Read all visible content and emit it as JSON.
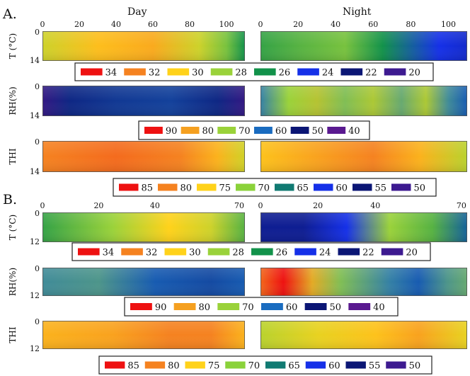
{
  "figure": {
    "panel_labels": [
      "A.",
      "B."
    ],
    "column_titles": [
      "Day",
      "Night"
    ],
    "legend_scales": {
      "temperature": [
        {
          "value": "34",
          "color": "#ee1111"
        },
        {
          "value": "32",
          "color": "#f58220"
        },
        {
          "value": "30",
          "color": "#ffd21a"
        },
        {
          "value": "28",
          "color": "#9ad23a"
        },
        {
          "value": "26",
          "color": "#12924a"
        },
        {
          "value": "24",
          "color": "#1530e8"
        },
        {
          "value": "22",
          "color": "#0b1675"
        },
        {
          "value": "20",
          "color": "#3d1a90"
        }
      ],
      "rh": [
        {
          "value": "90",
          "color": "#ee1111"
        },
        {
          "value": "80",
          "color": "#f5a020"
        },
        {
          "value": "70",
          "color": "#9ad23a"
        },
        {
          "value": "60",
          "color": "#1a6cc0"
        },
        {
          "value": "50",
          "color": "#0b1675"
        },
        {
          "value": "40",
          "color": "#5a1a90"
        }
      ],
      "thi": [
        {
          "value": "85",
          "color": "#ee1111"
        },
        {
          "value": "80",
          "color": "#f58220"
        },
        {
          "value": "75",
          "color": "#ffd21a"
        },
        {
          "value": "70",
          "color": "#8ad23a"
        },
        {
          "value": "65",
          "color": "#107a72"
        },
        {
          "value": "60",
          "color": "#1530e8"
        },
        {
          "value": "55",
          "color": "#0b1675"
        },
        {
          "value": "50",
          "color": "#3d1a90"
        }
      ]
    }
  },
  "chart_data": [
    {
      "type": "heatmap",
      "panel": "A.",
      "column": "Day",
      "ylabel": "T (°C)",
      "x_ticks": [
        "0",
        "20",
        "40",
        "60",
        "80",
        "100"
      ],
      "y_ticks": [
        "0",
        "14"
      ],
      "xlim": [
        0,
        110
      ],
      "ylim": [
        0,
        14
      ],
      "gradient": [
        {
          "x": 0,
          "value": 29
        },
        {
          "x": 30,
          "value": 30.5
        },
        {
          "x": 60,
          "value": 31
        },
        {
          "x": 85,
          "value": 29
        },
        {
          "x": 100,
          "value": 27.5
        },
        {
          "x": 110,
          "value": 26
        }
      ]
    },
    {
      "type": "heatmap",
      "panel": "A.",
      "column": "Night",
      "ylabel": "",
      "x_ticks": [
        "0",
        "20",
        "40",
        "60",
        "80",
        "100"
      ],
      "y_ticks": [],
      "xlim": [
        0,
        110
      ],
      "ylim": [
        0,
        14
      ],
      "gradient": [
        {
          "x": 0,
          "value": 26.5
        },
        {
          "x": 20,
          "value": 27
        },
        {
          "x": 45,
          "value": 27.5
        },
        {
          "x": 65,
          "value": 26
        },
        {
          "x": 80,
          "value": 25
        },
        {
          "x": 95,
          "value": 24
        },
        {
          "x": 110,
          "value": 23.5
        }
      ]
    },
    {
      "type": "heatmap",
      "panel": "A.",
      "column": "Day",
      "ylabel": "RH(%)",
      "x_ticks": [],
      "y_ticks": [
        "0",
        "14"
      ],
      "xlim": [
        0,
        110
      ],
      "ylim": [
        0,
        14
      ],
      "gradient": [
        {
          "x": 0,
          "value": 45
        },
        {
          "x": 15,
          "value": 52
        },
        {
          "x": 40,
          "value": 54
        },
        {
          "x": 70,
          "value": 55
        },
        {
          "x": 95,
          "value": 52
        },
        {
          "x": 110,
          "value": 45
        }
      ]
    },
    {
      "type": "heatmap",
      "panel": "A.",
      "column": "Night",
      "ylabel": "",
      "x_ticks": [],
      "y_ticks": [],
      "xlim": [
        0,
        110
      ],
      "ylim": [
        0,
        14
      ],
      "gradient": [
        {
          "x": 0,
          "value": 62
        },
        {
          "x": 15,
          "value": 70
        },
        {
          "x": 30,
          "value": 73
        },
        {
          "x": 45,
          "value": 68
        },
        {
          "x": 60,
          "value": 72
        },
        {
          "x": 75,
          "value": 66
        },
        {
          "x": 88,
          "value": 72
        },
        {
          "x": 100,
          "value": 63
        },
        {
          "x": 110,
          "value": 58
        }
      ]
    },
    {
      "type": "heatmap",
      "panel": "A.",
      "column": "Day",
      "ylabel": "THI",
      "x_ticks": [],
      "y_ticks": [
        "0",
        "14"
      ],
      "xlim": [
        0,
        110
      ],
      "ylim": [
        0,
        14
      ],
      "gradient": [
        {
          "x": 0,
          "value": 80
        },
        {
          "x": 40,
          "value": 81
        },
        {
          "x": 75,
          "value": 80
        },
        {
          "x": 95,
          "value": 77
        },
        {
          "x": 110,
          "value": 73
        }
      ]
    },
    {
      "type": "heatmap",
      "panel": "A.",
      "column": "Night",
      "ylabel": "",
      "x_ticks": [],
      "y_ticks": [],
      "xlim": [
        0,
        110
      ],
      "ylim": [
        0,
        14
      ],
      "gradient": [
        {
          "x": 0,
          "value": 76
        },
        {
          "x": 30,
          "value": 78
        },
        {
          "x": 60,
          "value": 80
        },
        {
          "x": 85,
          "value": 77
        },
        {
          "x": 110,
          "value": 72
        }
      ]
    },
    {
      "type": "heatmap",
      "panel": "B.",
      "column": "Day",
      "ylabel": "T (°C)",
      "x_ticks": [
        "0",
        "20",
        "40",
        "",
        "70"
      ],
      "y_ticks": [
        "0",
        "12"
      ],
      "xlim": [
        0,
        72
      ],
      "ylim": [
        0,
        12
      ],
      "gradient": [
        {
          "x": 0,
          "value": 26.5
        },
        {
          "x": 25,
          "value": 28
        },
        {
          "x": 45,
          "value": 30
        },
        {
          "x": 60,
          "value": 29
        },
        {
          "x": 72,
          "value": 27
        }
      ]
    },
    {
      "type": "heatmap",
      "panel": "B.",
      "column": "Night",
      "ylabel": "",
      "x_ticks": [
        "0",
        "20",
        "40",
        "",
        "70"
      ],
      "y_ticks": [],
      "xlim": [
        0,
        72
      ],
      "ylim": [
        0,
        12
      ],
      "gradient": [
        {
          "x": 0,
          "value": 22.5
        },
        {
          "x": 15,
          "value": 22.5
        },
        {
          "x": 30,
          "value": 24
        },
        {
          "x": 45,
          "value": 28
        },
        {
          "x": 60,
          "value": 27
        },
        {
          "x": 72,
          "value": 25
        }
      ]
    },
    {
      "type": "heatmap",
      "panel": "B.",
      "column": "Day",
      "ylabel": "RH(%)",
      "x_ticks": [],
      "y_ticks": [
        "0",
        "12"
      ],
      "xlim": [
        0,
        72
      ],
      "ylim": [
        0,
        12
      ],
      "gradient": [
        {
          "x": 0,
          "value": 63
        },
        {
          "x": 20,
          "value": 64
        },
        {
          "x": 40,
          "value": 58
        },
        {
          "x": 60,
          "value": 56
        },
        {
          "x": 72,
          "value": 58
        }
      ]
    },
    {
      "type": "heatmap",
      "panel": "B.",
      "column": "Night",
      "ylabel": "",
      "x_ticks": [],
      "y_ticks": [],
      "xlim": [
        0,
        72
      ],
      "ylim": [
        0,
        12
      ],
      "gradient": [
        {
          "x": 0,
          "value": 84
        },
        {
          "x": 8,
          "value": 90
        },
        {
          "x": 18,
          "value": 78
        },
        {
          "x": 28,
          "value": 68
        },
        {
          "x": 45,
          "value": 62
        },
        {
          "x": 55,
          "value": 58
        },
        {
          "x": 65,
          "value": 64
        },
        {
          "x": 72,
          "value": 66
        }
      ]
    },
    {
      "type": "heatmap",
      "panel": "B.",
      "column": "Day",
      "ylabel": "THI",
      "x_ticks": [],
      "y_ticks": [
        "0",
        "12"
      ],
      "xlim": [
        0,
        72
      ],
      "ylim": [
        0,
        12
      ],
      "gradient": [
        {
          "x": 0,
          "value": 77
        },
        {
          "x": 25,
          "value": 78
        },
        {
          "x": 45,
          "value": 80
        },
        {
          "x": 60,
          "value": 80
        },
        {
          "x": 72,
          "value": 77
        }
      ]
    },
    {
      "type": "heatmap",
      "panel": "B.",
      "column": "Night",
      "ylabel": "",
      "x_ticks": [],
      "y_ticks": [],
      "xlim": [
        0,
        72
      ],
      "ylim": [
        0,
        12
      ],
      "gradient": [
        {
          "x": 0,
          "value": 72
        },
        {
          "x": 20,
          "value": 74
        },
        {
          "x": 40,
          "value": 76
        },
        {
          "x": 55,
          "value": 78
        },
        {
          "x": 72,
          "value": 74
        }
      ]
    }
  ]
}
